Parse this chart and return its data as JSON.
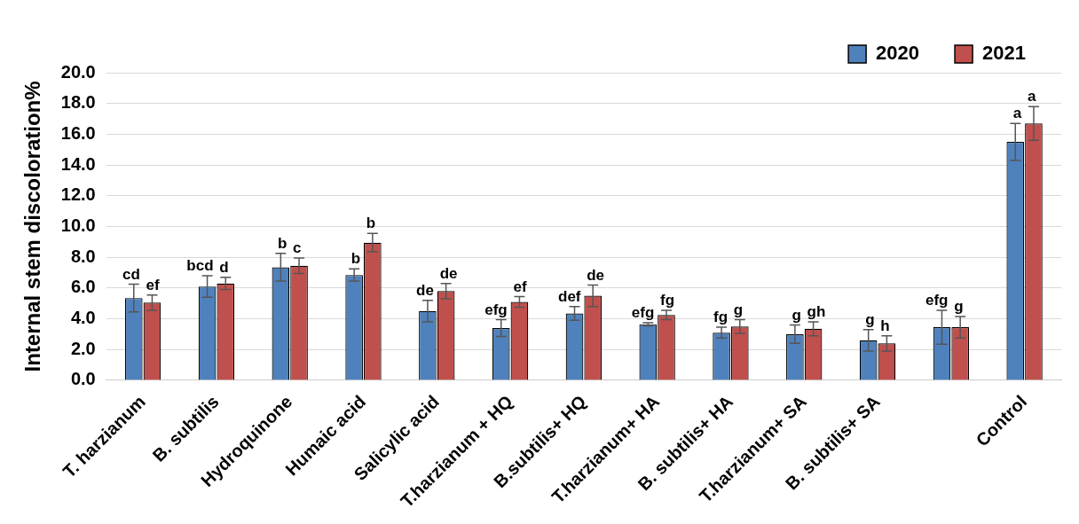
{
  "chart_data": {
    "type": "bar",
    "ylabel": "Internal stem discoloration%",
    "categories": [
      "T. harzianum",
      "B. subtilis",
      "Hydroquinone",
      "Humaic acid",
      "Salicylic acid",
      "T.harzianum + HQ",
      "B.subtilis+ HQ",
      "T.harzianum+ HA",
      "B. subtilis+ HA",
      "T.harzianum+ SA",
      "B. subtilis+ SA",
      null,
      "Control"
    ],
    "series": [
      {
        "name": "2020",
        "color": "#4f81bd",
        "values": [
          5.35,
          6.1,
          7.35,
          6.85,
          4.5,
          3.4,
          4.35,
          3.65,
          3.1,
          3.0,
          2.6,
          3.45,
          15.5
        ],
        "errors": [
          0.9,
          0.7,
          0.9,
          0.4,
          0.7,
          0.55,
          0.45,
          0.1,
          0.35,
          0.6,
          0.7,
          1.1,
          1.2
        ],
        "value_labels": [
          "cd",
          "bcd",
          "b",
          "b",
          "de",
          "efg",
          "def",
          "efg",
          "fg",
          "g",
          "g",
          "efg",
          "a"
        ]
      },
      {
        "name": "2021",
        "color": "#c0504d",
        "values": [
          5.05,
          6.3,
          7.45,
          8.95,
          5.8,
          5.1,
          5.5,
          4.25,
          3.5,
          3.35,
          2.4,
          3.45,
          16.7
        ],
        "errors": [
          0.5,
          0.4,
          0.5,
          0.6,
          0.5,
          0.35,
          0.7,
          0.3,
          0.45,
          0.45,
          0.5,
          0.7,
          1.1
        ],
        "value_labels": [
          "ef",
          "d",
          "c",
          "b",
          "de",
          "ef",
          "de",
          "fg",
          "g",
          "gh",
          "h",
          "g",
          "a"
        ]
      }
    ],
    "ylim": [
      0,
      20
    ],
    "yticks": [
      {
        "value": 0,
        "label": "0.0"
      },
      {
        "value": 2,
        "label": "2.0"
      },
      {
        "value": 4,
        "label": "4.0"
      },
      {
        "value": 6,
        "label": "6.0"
      },
      {
        "value": 8,
        "label": "8.0"
      },
      {
        "value": 10,
        "label": "10.0"
      },
      {
        "value": 12,
        "label": "12.0"
      },
      {
        "value": 14,
        "label": "14.0"
      },
      {
        "value": 16,
        "label": "16.0"
      },
      {
        "value": 18,
        "label": "18.0"
      },
      {
        "value": 20,
        "label": "20.0"
      }
    ],
    "grid": "y",
    "legend": "top right"
  }
}
